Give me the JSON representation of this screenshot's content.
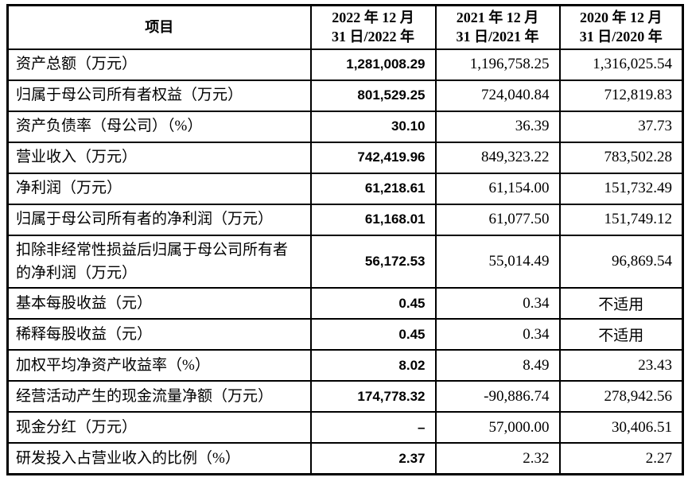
{
  "colors": {
    "background": "#ffffff",
    "border": "#000000",
    "text": "#000000"
  },
  "table": {
    "header": {
      "item": "项目",
      "col_2022": {
        "line1": "2022 年 12 月",
        "line2": "31 日/2022 年"
      },
      "col_2021": {
        "line1": "2021 年 12 月",
        "line2": "31 日/2021 年"
      },
      "col_2020": {
        "line1": "2020 年 12 月",
        "line2": "31 日/2020 年"
      }
    },
    "rows": [
      {
        "label": "资产总额（万元）",
        "values": [
          "1,281,008.29",
          "1,196,758.25",
          "1,316,025.54"
        ]
      },
      {
        "label": "归属于母公司所有者权益（万元）",
        "values": [
          "801,529.25",
          "724,040.84",
          "712,819.83"
        ]
      },
      {
        "label": "资产负债率（母公司）（%）",
        "values": [
          "30.10",
          "36.39",
          "37.73"
        ]
      },
      {
        "label": "营业收入（万元）",
        "values": [
          "742,419.96",
          "849,323.22",
          "783,502.28"
        ]
      },
      {
        "label": "净利润（万元）",
        "values": [
          "61,218.61",
          "61,154.00",
          "151,732.49"
        ]
      },
      {
        "label": "归属于母公司所有者的净利润（万元）",
        "values": [
          "61,168.01",
          "61,077.50",
          "151,749.12"
        ]
      },
      {
        "label": "扣除非经常性损益后归属于母公司所有者的净利润（万元）",
        "values": [
          "56,172.53",
          "55,014.49",
          "96,869.54"
        ]
      },
      {
        "label": "基本每股收益（元）",
        "values": [
          "0.45",
          "0.34",
          "不适用"
        ]
      },
      {
        "label": "稀释每股收益（元）",
        "values": [
          "0.45",
          "0.34",
          "不适用"
        ]
      },
      {
        "label": "加权平均净资产收益率（%）",
        "values": [
          "8.02",
          "8.49",
          "23.43"
        ]
      },
      {
        "label": "经营活动产生的现金流量净额（万元）",
        "values": [
          "174,778.32",
          "-90,886.74",
          "278,942.56"
        ]
      },
      {
        "label": "现金分红（万元）",
        "values": [
          "–",
          "57,000.00",
          "30,406.51"
        ]
      },
      {
        "label": "研发投入占营业收入的比例（%）",
        "values": [
          "2.37",
          "2.32",
          "2.27"
        ]
      }
    ]
  }
}
